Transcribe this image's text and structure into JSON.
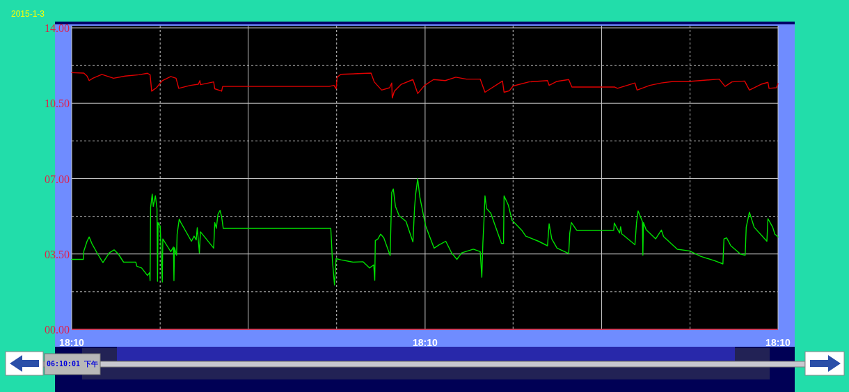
{
  "chart_data": {
    "type": "line",
    "title": "2015-1-3",
    "annotations": [
      "06:10:01 下午"
    ],
    "xlim": [
      18.16,
      18.17333
    ],
    "xticks": [
      {
        "value": 18.16,
        "label": "18:10"
      },
      {
        "value": 18.16167,
        "label": null
      },
      {
        "value": 18.16333,
        "label": null
      },
      {
        "value": 18.165,
        "label": null
      },
      {
        "value": 18.16667,
        "label": "18:10"
      },
      {
        "value": 18.16833,
        "label": null
      },
      {
        "value": 18.17,
        "label": null
      },
      {
        "value": 18.17167,
        "label": null
      },
      {
        "value": 18.17333,
        "label": "18:10"
      }
    ],
    "ylim": [
      0,
      14
    ],
    "yticks": [
      {
        "value": 0,
        "label": "00.00"
      },
      {
        "value": 1.75,
        "label": null
      },
      {
        "value": 3.5,
        "label": "03.50"
      },
      {
        "value": 5.25,
        "label": null
      },
      {
        "value": 7,
        "label": "07.00"
      },
      {
        "value": 8.75,
        "label": null
      },
      {
        "value": 10.5,
        "label": "10.50"
      },
      {
        "value": 12.25,
        "label": null
      },
      {
        "value": 14,
        "label": "14.00"
      }
    ],
    "grid": true,
    "series": [
      {
        "color": "#e00000",
        "x": [
          18.16,
          18.16023,
          18.16029,
          18.16033,
          18.1604,
          18.16057,
          18.16079,
          18.16101,
          18.16127,
          18.16143,
          18.16148,
          18.16151,
          18.1616,
          18.16171,
          18.16187,
          18.16197,
          18.16202,
          18.16224,
          18.16239,
          18.16242,
          18.16243,
          18.16268,
          18.1627,
          18.16283,
          18.16285,
          18.16486,
          18.16495,
          18.16499,
          18.16501,
          18.16508,
          18.16565,
          18.16571,
          18.16585,
          18.166,
          18.16604,
          18.16605,
          18.16609,
          18.16622,
          18.16644,
          18.16653,
          18.16666,
          18.16683,
          18.16705,
          18.16725,
          18.16745,
          18.16771,
          18.1678,
          18.16813,
          18.16816,
          18.16826,
          18.16833,
          18.16863,
          18.16898,
          18.16901,
          18.16915,
          18.16938,
          18.16944,
          18.17025,
          18.1703,
          18.17063,
          18.17067,
          18.17091,
          18.17113,
          18.17135,
          18.17165,
          18.17222,
          18.17233,
          18.17246,
          18.1727,
          18.17279,
          18.17301,
          18.17314,
          18.17316,
          18.1733,
          18.17333
        ],
        "values": [
          11.92,
          11.9,
          11.76,
          11.55,
          11.66,
          11.84,
          11.66,
          11.76,
          11.82,
          11.89,
          11.82,
          11.06,
          11.22,
          11.55,
          11.74,
          11.66,
          11.19,
          11.33,
          11.38,
          11.55,
          11.36,
          11.49,
          11.17,
          11.06,
          11.28,
          11.28,
          11.33,
          11.17,
          11.71,
          11.84,
          11.9,
          11.49,
          11.11,
          11.22,
          11.44,
          10.74,
          11.06,
          11.38,
          11.6,
          10.95,
          11.33,
          11.6,
          11.55,
          11.71,
          11.62,
          11.62,
          11.01,
          11.53,
          11.01,
          11.08,
          11.3,
          11.49,
          11.55,
          11.33,
          11.51,
          11.6,
          11.25,
          11.25,
          11.19,
          11.44,
          11.11,
          11.33,
          11.44,
          11.51,
          11.51,
          11.62,
          11.28,
          11.49,
          11.53,
          11.11,
          11.38,
          11.47,
          11.19,
          11.22,
          11.41
        ]
      },
      {
        "color": "#00e000",
        "x": [
          18.16,
          18.16022,
          18.16023,
          18.16029,
          18.16033,
          18.16038,
          18.16049,
          18.16059,
          18.16071,
          18.1608,
          18.16088,
          18.16098,
          18.16121,
          18.16123,
          18.16132,
          18.16143,
          18.16147,
          18.16148,
          18.16149,
          18.16152,
          18.16154,
          18.16158,
          18.16161,
          18.16162,
          18.16163,
          18.16167,
          18.16171,
          18.16172,
          18.1618,
          18.16187,
          18.16192,
          18.16193,
          18.16194,
          18.16198,
          18.16199,
          18.16203,
          18.16206,
          18.16226,
          18.16231,
          18.16235,
          18.16237,
          18.16241,
          18.16243,
          18.16268,
          18.1627,
          18.16273,
          18.16276,
          18.1628,
          18.16283,
          18.16286,
          18.16489,
          18.16492,
          18.16496,
          18.16499,
          18.16508,
          18.16531,
          18.1655,
          18.16562,
          18.1657,
          18.16572,
          18.16573,
          18.16578,
          18.16583,
          18.16589,
          18.16601,
          18.16604,
          18.16607,
          18.16611,
          18.16618,
          18.16631,
          18.16644,
          18.16647,
          18.16649,
          18.16653,
          18.16657,
          18.16668,
          18.16684,
          18.16694,
          18.16706,
          18.16717,
          18.16727,
          18.16736,
          18.16758,
          18.16771,
          18.16774,
          18.16776,
          18.16778,
          18.1678,
          18.16783,
          18.16791,
          18.16811,
          18.16815,
          18.16816,
          18.16824,
          18.16831,
          18.1685,
          18.16857,
          18.16881,
          18.16898,
          18.16901,
          18.16906,
          18.16916,
          18.16938,
          18.1694,
          18.16943,
          18.16953,
          18.17023,
          18.17024,
          18.17034,
          18.17036,
          18.17038,
          18.17063,
          18.17066,
          18.17069,
          18.17077,
          18.17078,
          18.17079,
          18.17084,
          18.17102,
          18.17113,
          18.17117,
          18.17143,
          18.17166,
          18.17187,
          18.17214,
          18.17229,
          18.17231,
          18.17236,
          18.17244,
          18.17262,
          18.17271,
          18.17273,
          18.17279,
          18.17288,
          18.17312,
          18.17314,
          18.17323,
          18.17327,
          18.17333
        ],
        "values": [
          3.25,
          3.25,
          3.64,
          4.09,
          4.29,
          3.99,
          3.5,
          3.1,
          3.55,
          3.69,
          3.5,
          3.12,
          3.12,
          2.93,
          2.85,
          2.5,
          2.63,
          2.26,
          5.66,
          6.28,
          5.71,
          6.2,
          5.61,
          2.23,
          4.96,
          4.8,
          2.2,
          4.2,
          3.88,
          3.61,
          3.82,
          2.26,
          3.79,
          3.44,
          4.42,
          5.12,
          4.96,
          4.09,
          4.33,
          4.15,
          4.72,
          3.55,
          4.53,
          3.77,
          4.96,
          4.69,
          5.34,
          5.52,
          5.23,
          4.69,
          4.69,
          3.23,
          2.06,
          3.28,
          3.23,
          3.12,
          3.14,
          2.85,
          2.99,
          2.28,
          4.12,
          4.2,
          4.42,
          4.25,
          3.43,
          6.36,
          6.52,
          5.71,
          5.28,
          5.01,
          4.06,
          5.61,
          6.25,
          6.99,
          6.15,
          4.8,
          3.77,
          3.93,
          4.09,
          3.55,
          3.25,
          3.55,
          3.72,
          3.61,
          2.42,
          3.99,
          5.01,
          6.2,
          5.61,
          5.39,
          3.99,
          3.99,
          6.2,
          5.77,
          5.07,
          4.58,
          4.33,
          4.09,
          3.88,
          4.9,
          4.2,
          3.77,
          3.52,
          4.47,
          4.96,
          4.6,
          4.6,
          4.94,
          4.47,
          4.76,
          4.44,
          3.93,
          4.96,
          5.5,
          5.01,
          3.44,
          4.96,
          4.63,
          4.2,
          4.61,
          4.31,
          3.72,
          3.64,
          3.39,
          3.18,
          3.04,
          4.2,
          4.25,
          3.88,
          3.5,
          3.44,
          4.74,
          5.44,
          4.74,
          4.09,
          5.14,
          4.74,
          4.42,
          4.29
        ]
      }
    ]
  }
}
